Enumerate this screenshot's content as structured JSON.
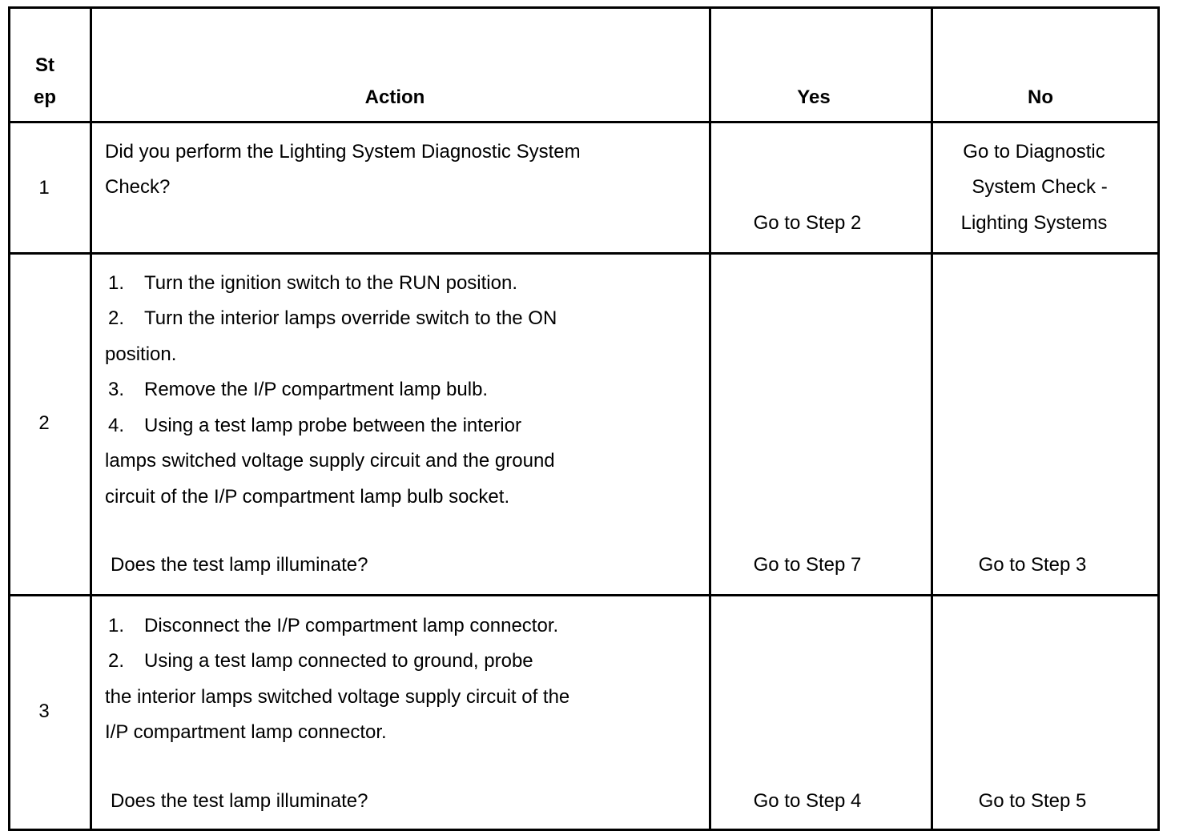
{
  "header": {
    "step": [
      "St",
      "ep"
    ],
    "action": "Action",
    "yes": "Yes",
    "no": "No"
  },
  "rows": [
    {
      "step": "1",
      "action_lines": [
        "Did you perform the Lighting System Diagnostic System",
        "Check?"
      ],
      "yes": "Go to Step 2",
      "no_lines": [
        "Go to Diagnostic",
        "System Check -",
        "Lighting Systems"
      ]
    },
    {
      "step": "2",
      "items": [
        {
          "n": "1.",
          "lines": [
            "Turn the ignition switch to the RUN position."
          ]
        },
        {
          "n": "2.",
          "lines": [
            "Turn the interior lamps override switch to the ON",
            "position."
          ]
        },
        {
          "n": "3.",
          "lines": [
            "Remove the I/P compartment lamp bulb."
          ]
        },
        {
          "n": "4.",
          "lines": [
            "Using a test lamp probe between the interior",
            "lamps switched voltage supply circuit and the ground",
            "circuit of the I/P compartment lamp bulb socket."
          ]
        }
      ],
      "question": "Does the test lamp illuminate?",
      "yes": "Go to Step 7",
      "no": "Go to Step 3"
    },
    {
      "step": "3",
      "items": [
        {
          "n": "1.",
          "lines": [
            "Disconnect the I/P compartment lamp connector."
          ]
        },
        {
          "n": "2.",
          "lines": [
            "Using a test lamp connected to ground, probe",
            "the interior lamps switched voltage supply circuit of the",
            "I/P compartment lamp connector."
          ]
        }
      ],
      "question": "Does the test lamp illuminate?",
      "yes": "Go to Step 4",
      "no": "Go to Step 5"
    }
  ]
}
